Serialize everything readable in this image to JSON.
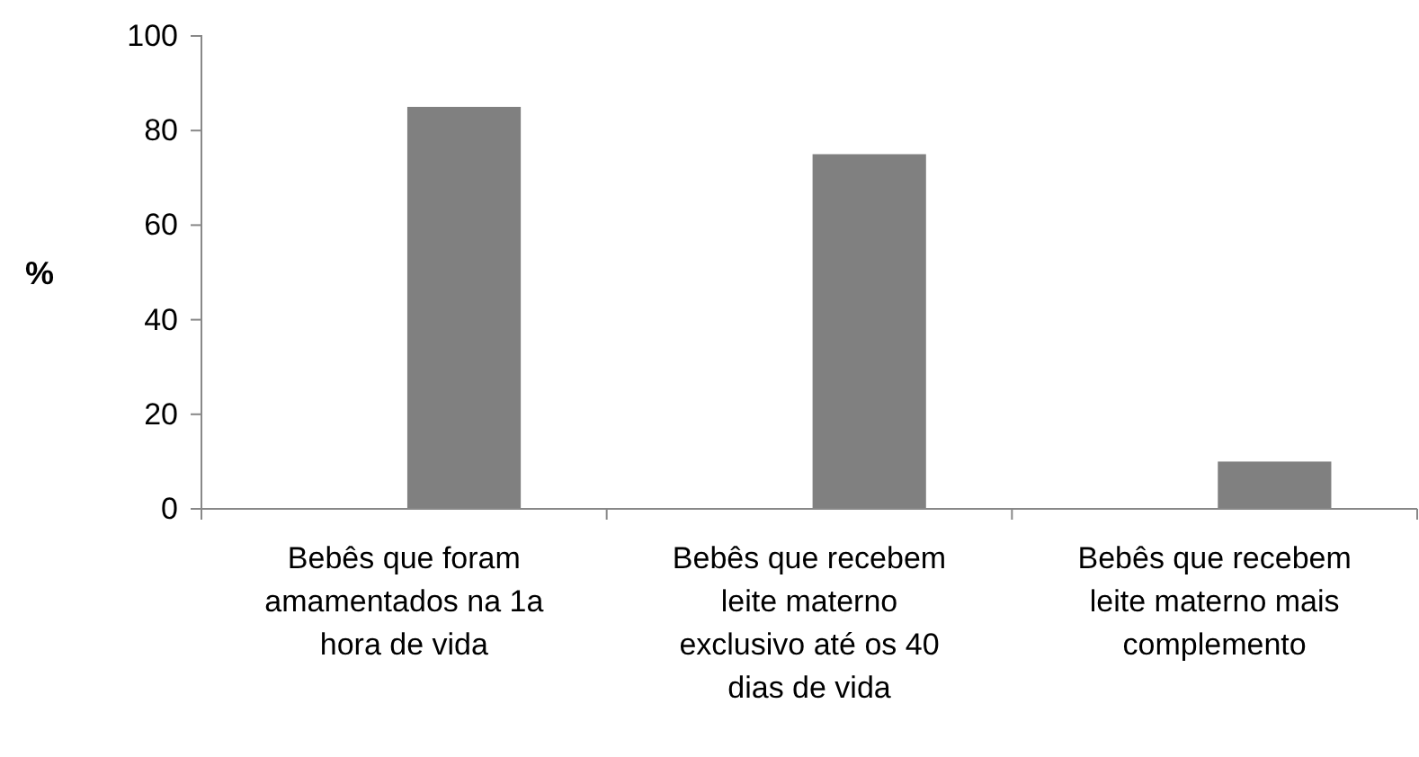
{
  "chart_data": {
    "type": "bar",
    "ylabel": "%",
    "categories": [
      "Bebês que foram amamentados na 1a hora de vida",
      "Bebês que recebem leite materno exclusivo até os 40 dias de vida",
      "Bebês que recebem leite materno mais complemento"
    ],
    "values": [
      85,
      75,
      10
    ],
    "color": "#808080",
    "ylim": [
      0,
      100
    ],
    "yticks": [
      0,
      20,
      40,
      60,
      80,
      100
    ]
  }
}
